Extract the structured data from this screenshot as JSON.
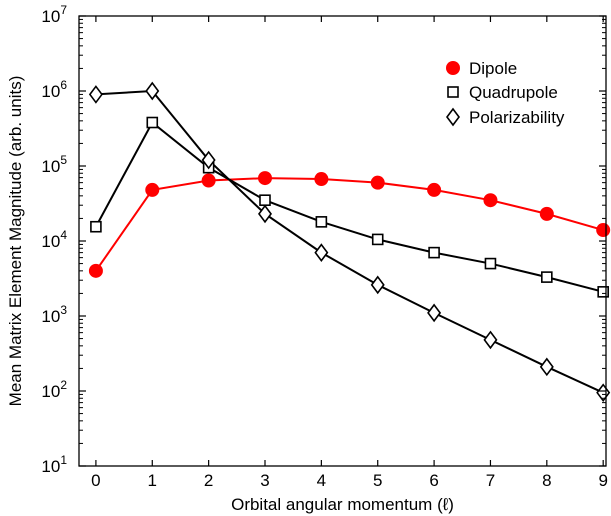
{
  "chart_data": {
    "type": "line",
    "title": "",
    "xlabel": "Orbital angular momentum (ℓ)",
    "ylabel": "Mean Matrix Element Magnitude (arb. units)",
    "x": [
      0,
      1,
      2,
      3,
      4,
      5,
      6,
      7,
      8,
      9
    ],
    "xlim": [
      -0.3,
      9.05
    ],
    "ylim": [
      10,
      10000000
    ],
    "yscale": "log",
    "xticks": [
      "0",
      "1",
      "2",
      "3",
      "4",
      "5",
      "6",
      "7",
      "8",
      "9"
    ],
    "yticks": [
      {
        "base": "10",
        "exp": "1",
        "value": 10
      },
      {
        "base": "10",
        "exp": "2",
        "value": 100
      },
      {
        "base": "10",
        "exp": "3",
        "value": 1000
      },
      {
        "base": "10",
        "exp": "4",
        "value": 10000
      },
      {
        "base": "10",
        "exp": "5",
        "value": 100000
      },
      {
        "base": "10",
        "exp": "6",
        "value": 1000000
      },
      {
        "base": "10",
        "exp": "7",
        "value": 10000000
      }
    ],
    "grid": false,
    "legend_position": "top-right",
    "series": [
      {
        "name": "Dipole",
        "marker": "filled-circle",
        "color": "#ff0000",
        "values": [
          4000,
          48000,
          64000,
          69000,
          67000,
          60000,
          48000,
          35000,
          23000,
          14000
        ]
      },
      {
        "name": "Quadrupole",
        "marker": "open-square",
        "color": "#000000",
        "values": [
          15500,
          380000,
          95000,
          35000,
          18000,
          10500,
          7000,
          5000,
          3300,
          2100
        ]
      },
      {
        "name": "Polarizability",
        "marker": "open-diamond",
        "color": "#000000",
        "values": [
          900000,
          1000000,
          120000,
          23000,
          7000,
          2600,
          1100,
          480,
          210,
          95
        ]
      }
    ]
  }
}
